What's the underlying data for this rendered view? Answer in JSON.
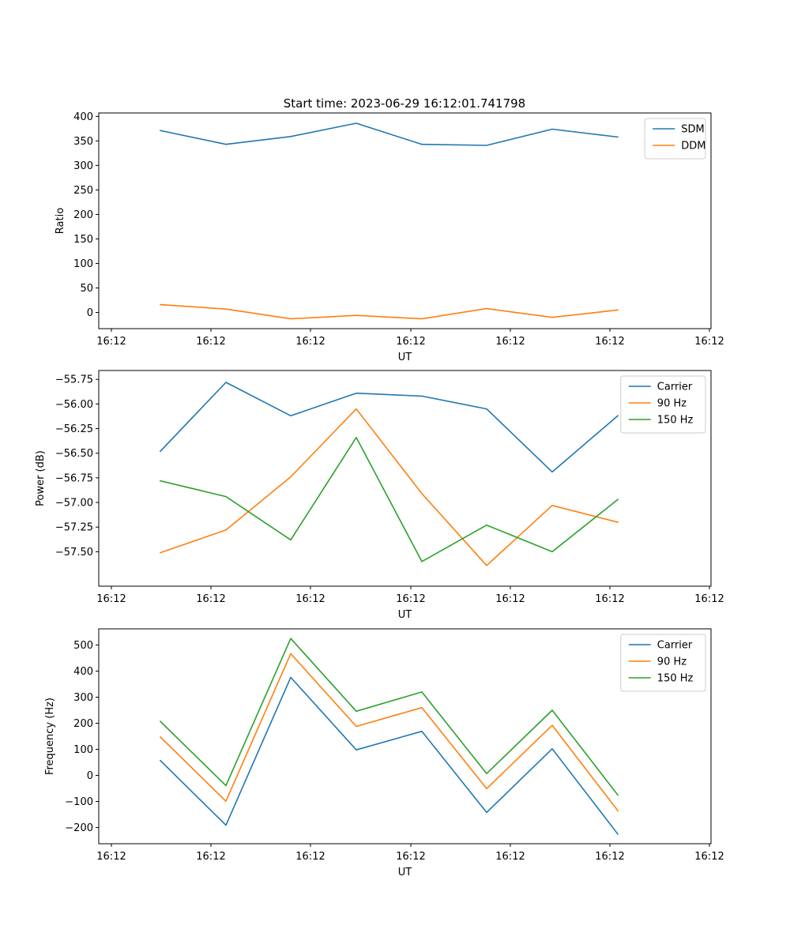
{
  "figure_title": "Start time: 2023-06-29 16:12:01.741798",
  "colors": {
    "blue": "#1f77b4",
    "orange": "#ff7f0e",
    "green": "#2ca02c"
  },
  "chart_data": [
    {
      "type": "line",
      "title": "Start time: 2023-06-29 16:12:01.741798",
      "xlabel": "UT",
      "ylabel": "Ratio",
      "x_tick_labels": [
        "16:12",
        "16:12",
        "16:12",
        "16:12",
        "16:12",
        "16:12",
        "16:12"
      ],
      "ylim": [
        -33,
        407
      ],
      "y_ticks": [
        0,
        50,
        100,
        150,
        200,
        250,
        300,
        350,
        400
      ],
      "y_tick_labels": [
        "0",
        "50",
        "100",
        "150",
        "200",
        "250",
        "300",
        "350",
        "400"
      ],
      "legend": "top-right",
      "grid": false,
      "series": [
        {
          "name": "SDM",
          "color": "#1f77b4",
          "values": [
            371,
            343,
            359,
            386,
            343,
            341,
            374,
            358
          ]
        },
        {
          "name": "DDM",
          "color": "#ff7f0e",
          "values": [
            16,
            7,
            -13,
            -6,
            -13,
            8,
            -10,
            5
          ]
        }
      ]
    },
    {
      "type": "line",
      "title": "",
      "xlabel": "UT",
      "ylabel": "Power (dB)",
      "x_tick_labels": [
        "16:12",
        "16:12",
        "16:12",
        "16:12",
        "16:12",
        "16:12",
        "16:12"
      ],
      "ylim": [
        -57.85,
        -55.66
      ],
      "y_ticks": [
        -57.5,
        -57.25,
        -57.0,
        -56.75,
        -56.5,
        -56.25,
        -56.0,
        -55.75
      ],
      "y_tick_labels": [
        "−57.50",
        "−57.25",
        "−57.00",
        "−56.75",
        "−56.50",
        "−56.25",
        "−56.00",
        "−55.75"
      ],
      "legend": "top-right",
      "grid": false,
      "series": [
        {
          "name": "Carrier",
          "color": "#1f77b4",
          "values": [
            -56.48,
            -55.78,
            -56.12,
            -55.89,
            -55.92,
            -56.05,
            -56.69,
            -56.12
          ]
        },
        {
          "name": "90 Hz",
          "color": "#ff7f0e",
          "values": [
            -57.51,
            -57.28,
            -56.74,
            -56.05,
            -56.91,
            -57.64,
            -57.03,
            -57.2
          ]
        },
        {
          "name": "150 Hz",
          "color": "#2ca02c",
          "values": [
            -56.78,
            -56.94,
            -57.38,
            -56.34,
            -57.6,
            -57.23,
            -57.5,
            -56.97
          ]
        }
      ]
    },
    {
      "type": "line",
      "title": "",
      "xlabel": "UT",
      "ylabel": "Frequency (Hz)",
      "x_tick_labels": [
        "16:12",
        "16:12",
        "16:12",
        "16:12",
        "16:12",
        "16:12",
        "16:12"
      ],
      "ylim": [
        -262,
        562
      ],
      "y_ticks": [
        -200,
        -100,
        0,
        100,
        200,
        300,
        400,
        500
      ],
      "y_tick_labels": [
        "−200",
        "−100",
        "0",
        "100",
        "200",
        "300",
        "400",
        "500"
      ],
      "legend": "top-right",
      "grid": false,
      "series": [
        {
          "name": "Carrier",
          "color": "#1f77b4",
          "values": [
            57,
            -191,
            376,
            98,
            169,
            -142,
            102,
            -225
          ]
        },
        {
          "name": "90 Hz",
          "color": "#ff7f0e",
          "values": [
            147,
            -99,
            467,
            188,
            260,
            -51,
            192,
            -135
          ]
        },
        {
          "name": "150 Hz",
          "color": "#2ca02c",
          "values": [
            207,
            -39,
            525,
            246,
            320,
            7,
            250,
            -75
          ]
        }
      ]
    }
  ]
}
